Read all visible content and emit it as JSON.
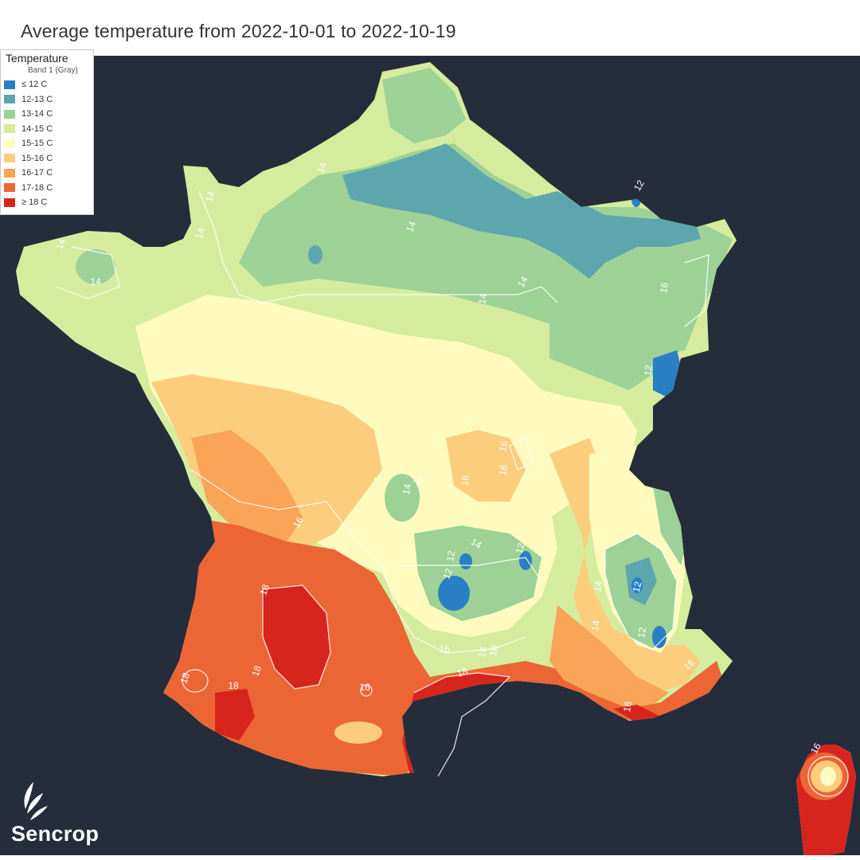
{
  "header": {
    "title": "Average temperature from 2022-10-01 to 2022-10-19"
  },
  "legend": {
    "title": "Temperature",
    "subtitle": "Band 1 (Gray)",
    "items": [
      {
        "label": "≤ 12 C",
        "color": "#2a7ec3"
      },
      {
        "label": "12-13 C",
        "color": "#5ea6ad"
      },
      {
        "label": "13-14 C",
        "color": "#9dd196"
      },
      {
        "label": "14-15 C",
        "color": "#d5ec9e"
      },
      {
        "label": "15-15 C",
        "color": "#fffbbf"
      },
      {
        "label": "15-16 C",
        "color": "#fdcd7e"
      },
      {
        "label": "16-17 C",
        "color": "#f9a457"
      },
      {
        "label": "17-18 C",
        "color": "#ec6535"
      },
      {
        "label": "≥ 18 C",
        "color": "#d7251d"
      }
    ]
  },
  "map": {
    "background_color": "#252d3a",
    "contour_color": "#ffffff",
    "contour_labels": [
      "14",
      "14",
      "14",
      "14",
      "14",
      "14",
      "14",
      "14",
      "12",
      "16",
      "16",
      "16",
      "16",
      "14",
      "14",
      "14",
      "12",
      "12",
      "12",
      "12",
      "14",
      "14",
      "12",
      "16",
      "18",
      "18",
      "18",
      "18",
      "16",
      "16",
      "18",
      "16",
      "16",
      "16",
      "16",
      "12",
      "16",
      "18"
    ]
  },
  "brand": {
    "name": "Sencrop",
    "logo_icon": "sencrop-leaf-logo-icon"
  }
}
